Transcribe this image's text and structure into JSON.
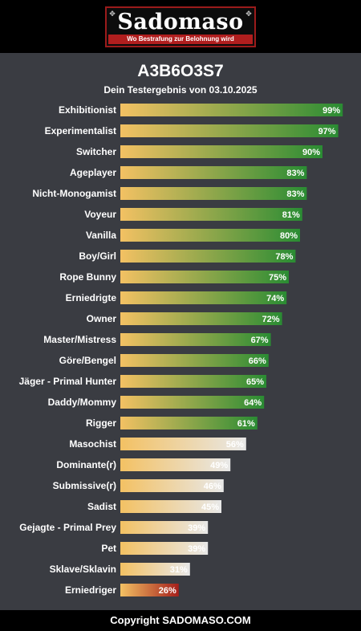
{
  "header": {
    "logo_text": "Sadomaso",
    "logo_tagline": "Wo Bestrafung zur Belohnung wird"
  },
  "title": "A3B6O3S7",
  "subtitle": "Dein Testergebnis von 03.10.2025",
  "footer": "Copyright SADOMASO.COM",
  "colors": {
    "background": "#3a3c42",
    "bar_start": "#f3c163",
    "bar_green": "#2a8c33",
    "bar_light": "#e8e8e8",
    "bar_red": "#a5201c"
  },
  "chart_data": {
    "type": "bar",
    "orientation": "horizontal",
    "xlim": [
      0,
      100
    ],
    "categories": [
      "Exhibitionist",
      "Experimentalist",
      "Switcher",
      "Ageplayer",
      "Nicht-Monogamist",
      "Voyeur",
      "Vanilla",
      "Boy/Girl",
      "Rope Bunny",
      "Erniedrigte",
      "Owner",
      "Master/Mistress",
      "Göre/Bengel",
      "Jäger - Primal Hunter",
      "Daddy/Mommy",
      "Rigger",
      "Masochist",
      "Dominante(r)",
      "Submissive(r)",
      "Sadist",
      "Gejagte - Primal Prey",
      "Pet",
      "Sklave/Sklavin",
      "Erniedriger"
    ],
    "values": [
      99,
      97,
      90,
      83,
      83,
      81,
      80,
      78,
      75,
      74,
      72,
      67,
      66,
      65,
      64,
      61,
      56,
      49,
      46,
      45,
      39,
      39,
      31,
      26
    ],
    "value_labels": [
      "99%",
      "97%",
      "90%",
      "83%",
      "83%",
      "81%",
      "80%",
      "78%",
      "75%",
      "74%",
      "72%",
      "67%",
      "66%",
      "65%",
      "64%",
      "61%",
      "56%",
      "49%",
      "46%",
      "45%",
      "39%",
      "39%",
      "31%",
      "26%"
    ]
  }
}
